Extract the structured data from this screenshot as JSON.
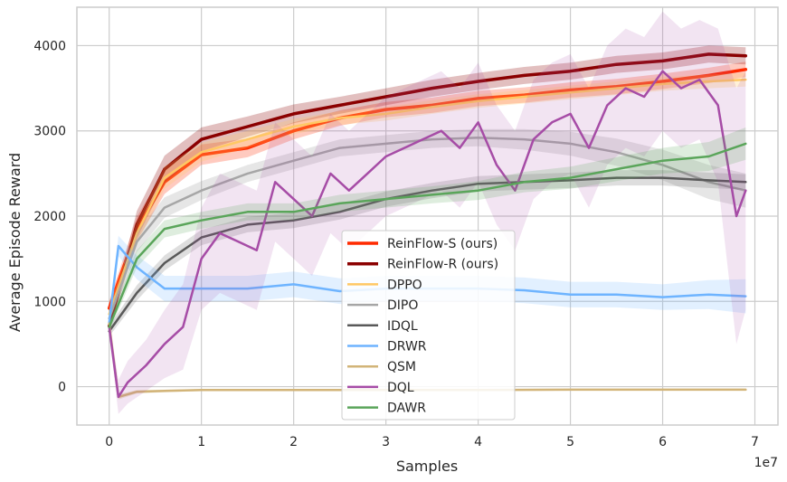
{
  "chart_data": {
    "type": "line",
    "title": "",
    "xlabel": "Samples",
    "ylabel": "Average Episode Reward",
    "x_offset_label": "1e7",
    "x_scale_factor": 10000000,
    "xlim": [
      -0.35,
      7.25
    ],
    "ylim": [
      -450,
      4450
    ],
    "xticks": [
      0,
      1,
      2,
      3,
      4,
      5,
      6,
      7
    ],
    "xtick_labels": [
      "0",
      "1",
      "2",
      "3",
      "4",
      "5",
      "6",
      "7"
    ],
    "yticks": [
      0,
      1000,
      2000,
      3000,
      4000
    ],
    "ytick_labels": [
      "0",
      "1000",
      "2000",
      "3000",
      "4000"
    ],
    "grid": true,
    "legend_position": "lower-center",
    "series": [
      {
        "name": "ReinFlow-S (ours)",
        "color": "#ff2a00",
        "line_width": 3.5,
        "band_opacity": 0.25,
        "x": [
          0,
          0.3,
          0.6,
          1.0,
          1.5,
          2.0,
          2.5,
          3.0,
          3.5,
          4.0,
          4.5,
          5.0,
          5.5,
          6.0,
          6.5,
          6.9
        ],
        "y": [
          920,
          1850,
          2400,
          2720,
          2800,
          3000,
          3150,
          3250,
          3300,
          3380,
          3420,
          3480,
          3520,
          3580,
          3650,
          3720
        ],
        "band": [
          80,
          140,
          140,
          120,
          110,
          100,
          90,
          90,
          90,
          90,
          90,
          90,
          90,
          90,
          90,
          90
        ]
      },
      {
        "name": "ReinFlow-R (ours)",
        "color": "#8b0000",
        "line_width": 3.5,
        "band_opacity": 0.25,
        "x": [
          0,
          0.3,
          0.6,
          1.0,
          1.5,
          2.0,
          2.5,
          3.0,
          3.5,
          4.0,
          4.5,
          5.0,
          5.5,
          6.0,
          6.5,
          6.9
        ],
        "y": [
          710,
          1900,
          2550,
          2900,
          3050,
          3200,
          3300,
          3400,
          3500,
          3580,
          3650,
          3700,
          3780,
          3820,
          3900,
          3880
        ],
        "band": [
          80,
          160,
          160,
          140,
          120,
          110,
          100,
          100,
          100,
          100,
          100,
          100,
          100,
          100,
          100,
          100
        ]
      },
      {
        "name": "DPPO",
        "color": "#ffc864",
        "line_width": 2.5,
        "band_opacity": 0.25,
        "x": [
          0,
          0.3,
          0.6,
          1.0,
          1.5,
          2.0,
          2.5,
          3.0,
          3.5,
          4.0,
          4.5,
          5.0,
          5.5,
          6.0,
          6.5,
          6.9
        ],
        "y": [
          850,
          1800,
          2450,
          2750,
          2900,
          3050,
          3150,
          3200,
          3280,
          3350,
          3400,
          3450,
          3500,
          3550,
          3580,
          3600
        ],
        "band": [
          80,
          130,
          130,
          110,
          100,
          90,
          80,
          80,
          80,
          80,
          80,
          80,
          80,
          80,
          80,
          80
        ]
      },
      {
        "name": "DIPO",
        "color": "#a6a6a6",
        "line_width": 2.5,
        "band_opacity": 0.28,
        "x": [
          0,
          0.3,
          0.6,
          1.0,
          1.5,
          2.0,
          2.5,
          3.0,
          3.5,
          4.0,
          4.5,
          5.0,
          5.5,
          6.0,
          6.5,
          6.9
        ],
        "y": [
          800,
          1700,
          2100,
          2300,
          2500,
          2650,
          2800,
          2850,
          2900,
          2920,
          2900,
          2850,
          2750,
          2600,
          2400,
          2300
        ],
        "band": [
          80,
          120,
          120,
          110,
          100,
          100,
          100,
          100,
          100,
          100,
          120,
          140,
          160,
          180,
          200,
          200
        ]
      },
      {
        "name": "IDQL",
        "color": "#595959",
        "line_width": 2.5,
        "band_opacity": 0.2,
        "x": [
          0,
          0.3,
          0.6,
          1.0,
          1.5,
          2.0,
          2.5,
          3.0,
          3.5,
          4.0,
          4.5,
          5.0,
          5.5,
          6.0,
          6.5,
          6.9
        ],
        "y": [
          650,
          1100,
          1450,
          1750,
          1900,
          1950,
          2050,
          2200,
          2300,
          2380,
          2400,
          2420,
          2450,
          2450,
          2420,
          2400
        ],
        "band": [
          60,
          90,
          90,
          90,
          90,
          90,
          90,
          90,
          90,
          90,
          90,
          90,
          90,
          90,
          90,
          90
        ]
      },
      {
        "name": "DRWR",
        "color": "#6eb4ff",
        "line_width": 2.5,
        "band_opacity": 0.2,
        "x": [
          0,
          0.1,
          0.3,
          0.6,
          1.0,
          1.5,
          2.0,
          2.5,
          3.0,
          3.5,
          4.0,
          4.5,
          5.0,
          5.5,
          6.0,
          6.5,
          6.9
        ],
        "y": [
          750,
          1650,
          1400,
          1150,
          1150,
          1150,
          1200,
          1120,
          1150,
          1150,
          1150,
          1130,
          1080,
          1080,
          1050,
          1080,
          1060
        ],
        "band": [
          60,
          120,
          140,
          150,
          150,
          150,
          150,
          150,
          150,
          150,
          150,
          150,
          150,
          150,
          150,
          170,
          200
        ]
      },
      {
        "name": "QSM",
        "color": "#d2b478",
        "line_width": 2.5,
        "band_opacity": 0.3,
        "x": [
          0,
          0.1,
          0.3,
          0.6,
          1.0,
          2.0,
          3.0,
          4.0,
          5.0,
          6.0,
          6.9
        ],
        "y": [
          740,
          -120,
          -60,
          -50,
          -40,
          -40,
          -40,
          -40,
          -35,
          -35,
          -35
        ],
        "band": [
          40,
          30,
          20,
          15,
          12,
          12,
          12,
          12,
          12,
          12,
          12
        ]
      },
      {
        "name": "DQL",
        "color": "#a64ca6",
        "line_width": 2.5,
        "band_opacity": 0.15,
        "x": [
          0,
          0.1,
          0.2,
          0.4,
          0.6,
          0.8,
          1.0,
          1.2,
          1.4,
          1.6,
          1.8,
          2.0,
          2.2,
          2.4,
          2.6,
          2.8,
          3.0,
          3.2,
          3.4,
          3.6,
          3.8,
          4.0,
          4.2,
          4.4,
          4.6,
          4.8,
          5.0,
          5.2,
          5.4,
          5.6,
          5.8,
          6.0,
          6.2,
          6.4,
          6.6,
          6.8,
          6.9
        ],
        "y": [
          700,
          -120,
          50,
          250,
          500,
          700,
          1500,
          1800,
          1700,
          1600,
          2400,
          2200,
          2000,
          2500,
          2300,
          2500,
          2700,
          2800,
          2900,
          3000,
          2800,
          3100,
          2600,
          2300,
          2900,
          3100,
          3200,
          2800,
          3300,
          3500,
          3400,
          3700,
          3500,
          3600,
          3300,
          2000,
          2300
        ],
        "band": [
          80,
          200,
          250,
          300,
          400,
          500,
          600,
          700,
          700,
          700,
          700,
          700,
          700,
          700,
          700,
          700,
          700,
          700,
          700,
          700,
          700,
          700,
          700,
          700,
          700,
          700,
          700,
          700,
          700,
          700,
          700,
          700,
          700,
          700,
          900,
          1500,
          1400
        ]
      },
      {
        "name": "DAWR",
        "color": "#5aa55a",
        "line_width": 2.5,
        "band_opacity": 0.2,
        "x": [
          0,
          0.3,
          0.6,
          1.0,
          1.5,
          2.0,
          2.5,
          3.0,
          3.5,
          4.0,
          4.5,
          5.0,
          5.5,
          6.0,
          6.5,
          6.9
        ],
        "y": [
          700,
          1500,
          1850,
          1950,
          2050,
          2050,
          2150,
          2200,
          2250,
          2300,
          2400,
          2450,
          2550,
          2650,
          2700,
          2850
        ],
        "band": [
          60,
          100,
          100,
          100,
          100,
          100,
          100,
          100,
          100,
          110,
          120,
          130,
          140,
          150,
          170,
          190
        ]
      }
    ]
  }
}
